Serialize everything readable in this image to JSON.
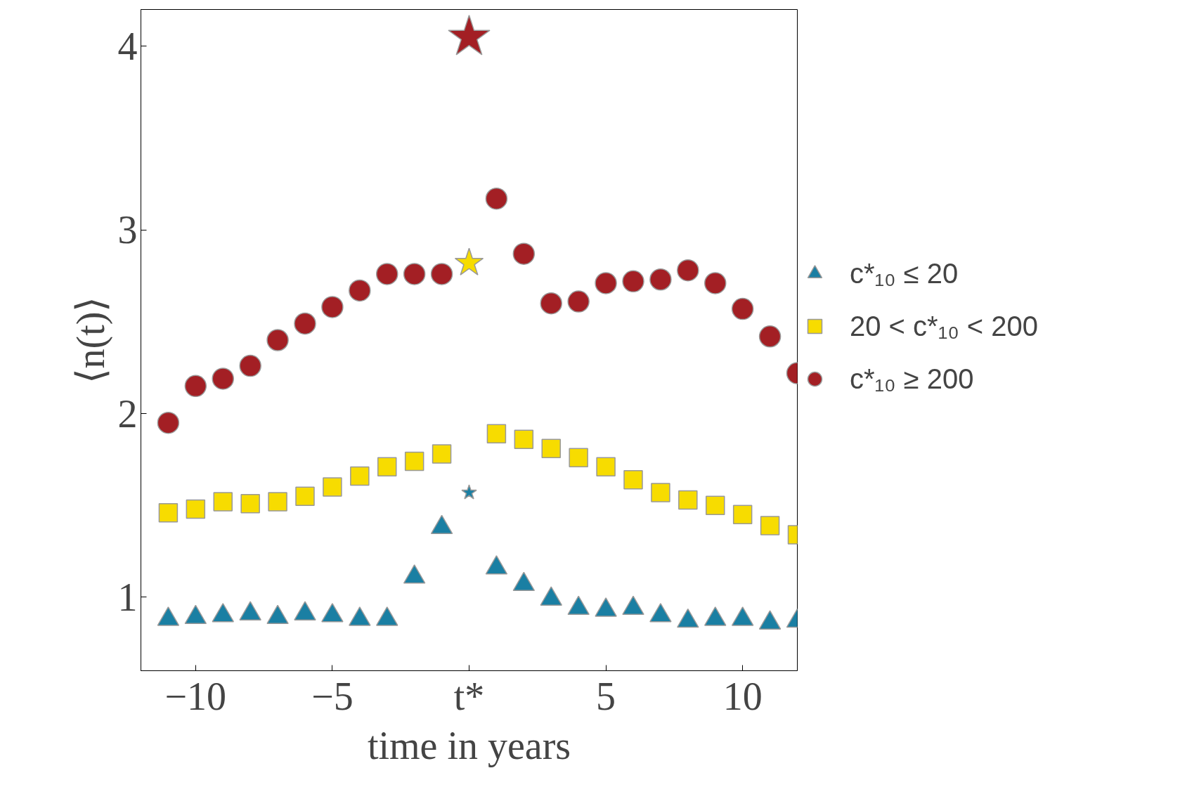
{
  "chart_data": {
    "type": "scatter",
    "xlabel": "time in years",
    "ylabel": "⟨n(t)⟩",
    "xlim": [
      -12,
      12
    ],
    "ylim": [
      0.6,
      4.2
    ],
    "xticks": [
      -10,
      -5,
      {
        "value": 0,
        "label": "t*"
      },
      5,
      10
    ],
    "yticks": [
      1,
      2,
      3,
      4
    ],
    "grid": false,
    "legend": "right",
    "series": [
      {
        "name": "c*₁₀ ≤ 20",
        "color": "#1a7fa3",
        "marker": "triangle",
        "x": [
          -11,
          -10,
          -9,
          -8,
          -7,
          -6,
          -5,
          -4,
          -3,
          -2,
          -1,
          1,
          2,
          3,
          4,
          5,
          6,
          7,
          8,
          9,
          10,
          11,
          12
        ],
        "values": [
          0.88,
          0.89,
          0.9,
          0.91,
          0.89,
          0.91,
          0.9,
          0.88,
          0.88,
          1.11,
          1.38,
          1.16,
          1.07,
          0.99,
          0.94,
          0.93,
          0.94,
          0.9,
          0.87,
          0.88,
          0.88,
          0.86,
          0.87
        ]
      },
      {
        "name": "20 < c*₁₀ < 200",
        "color": "#f7dc00",
        "marker": "square",
        "x": [
          -11,
          -10,
          -9,
          -8,
          -7,
          -6,
          -5,
          -4,
          -3,
          -2,
          -1,
          1,
          2,
          3,
          4,
          5,
          6,
          7,
          8,
          9,
          10,
          11,
          12
        ],
        "values": [
          1.46,
          1.48,
          1.52,
          1.51,
          1.52,
          1.55,
          1.6,
          1.66,
          1.71,
          1.74,
          1.78,
          1.89,
          1.86,
          1.81,
          1.76,
          1.71,
          1.64,
          1.57,
          1.53,
          1.5,
          1.45,
          1.39,
          1.34
        ]
      },
      {
        "name": "c*₁₀ ≥ 200",
        "color": "#a31f24",
        "marker": "circle",
        "x": [
          -11,
          -10,
          -9,
          -8,
          -7,
          -6,
          -5,
          -4,
          -3,
          -2,
          -1,
          1,
          2,
          3,
          4,
          5,
          6,
          7,
          8,
          9,
          10,
          11,
          12
        ],
        "values": [
          1.95,
          2.15,
          2.19,
          2.26,
          2.4,
          2.49,
          2.58,
          2.67,
          2.76,
          2.76,
          2.76,
          3.17,
          2.87,
          2.6,
          2.61,
          2.71,
          2.72,
          2.73,
          2.78,
          2.71,
          2.57,
          2.42,
          2.22
        ]
      },
      {
        "color": "#1a7fa3",
        "marker": "star",
        "x": [
          0
        ],
        "values": [
          1.57
        ]
      },
      {
        "color": "#f7dc00",
        "marker": "star",
        "x": [
          0
        ],
        "values": [
          2.82
        ]
      },
      {
        "color": "#a31f24",
        "marker": "star",
        "x": [
          0
        ],
        "values": [
          4.05
        ]
      }
    ]
  }
}
